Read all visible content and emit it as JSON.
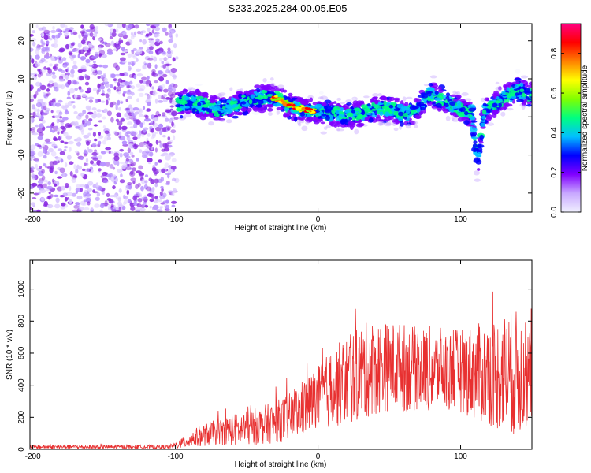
{
  "title": "S233.2025.284.00.05.E05",
  "colors": {
    "snr_line": "#e83030",
    "cbar_stops": [
      "#f0f0ff",
      "#c8a8ff",
      "#8000ff",
      "#0000ff",
      "#00c0ff",
      "#00ff80",
      "#80ff00",
      "#ffff00",
      "#ff8000",
      "#ff0000",
      "#ff0080"
    ]
  },
  "chart_data": [
    {
      "type": "heatmap",
      "title": "S233.2025.284.00.05.E05",
      "xlabel": "Height of straight line (km)",
      "ylabel": "Frequency (Hz)",
      "xlim": [
        -202,
        150
      ],
      "ylim": [
        -25,
        24.5
      ],
      "xticks": [
        -200,
        -100,
        0,
        100
      ],
      "yticks": [
        -20,
        -10,
        0,
        10,
        20
      ],
      "xtick_labels": [
        "-200",
        "-100",
        "0",
        "100"
      ],
      "ytick_labels": [
        "-20",
        "-10",
        "0",
        "10",
        "20"
      ],
      "noise_region_x": [
        -202,
        -99
      ],
      "signal_trace": {
        "x": [
          -98,
          -90,
          -80,
          -70,
          -60,
          -50,
          -40,
          -30,
          -20,
          -10,
          0,
          10,
          20,
          30,
          40,
          50,
          60,
          70,
          78,
          85,
          90,
          95,
          100,
          105,
          108,
          112,
          116,
          120,
          130,
          140,
          150
        ],
        "freq": [
          3,
          4,
          3,
          2,
          3,
          4,
          5,
          5,
          3,
          2,
          1.5,
          1,
          0,
          1,
          2,
          2,
          1,
          2,
          6,
          5,
          4,
          3,
          2,
          1,
          1,
          -14,
          1,
          2,
          5,
          7,
          6
        ]
      },
      "colorbar": {
        "label": "Normalized spectral amplitude",
        "range": [
          0,
          0.95
        ],
        "ticks": [
          0,
          0.2,
          0.4,
          0.6,
          0.8
        ],
        "tick_labels": [
          "0.0",
          "0.2",
          "0.4",
          "0.6",
          "0.8"
        ]
      }
    },
    {
      "type": "line",
      "xlabel": "Height of straight line (km)",
      "ylabel": "SNR (10 * v/v)",
      "xlim": [
        -202,
        150
      ],
      "ylim": [
        0,
        1180
      ],
      "xticks": [
        -200,
        -100,
        0,
        100
      ],
      "yticks": [
        0,
        200,
        400,
        600,
        800,
        1000
      ],
      "xtick_labels": [
        "-200",
        "-100",
        "0",
        "100"
      ],
      "ytick_labels": [
        "0",
        "200",
        "400",
        "600",
        "800",
        "1000"
      ],
      "series": [
        {
          "name": "SNR",
          "envelope_x": [
            -202,
            -150,
            -105,
            -98,
            -90,
            -80,
            -70,
            -60,
            -50,
            -40,
            -30,
            -20,
            -10,
            0,
            10,
            20,
            30,
            40,
            50,
            60,
            70,
            80,
            90,
            100,
            110,
            120,
            130,
            140,
            150
          ],
          "envelope_mean": [
            15,
            15,
            15,
            30,
            60,
            90,
            110,
            120,
            130,
            150,
            170,
            200,
            260,
            320,
            380,
            430,
            480,
            510,
            520,
            510,
            500,
            500,
            490,
            490,
            480,
            470,
            480,
            470,
            460
          ],
          "envelope_amp": [
            12,
            12,
            12,
            25,
            50,
            70,
            80,
            100,
            110,
            120,
            130,
            150,
            180,
            200,
            250,
            280,
            300,
            300,
            280,
            280,
            260,
            270,
            260,
            260,
            300,
            330,
            380,
            400,
            300
          ]
        }
      ]
    }
  ]
}
